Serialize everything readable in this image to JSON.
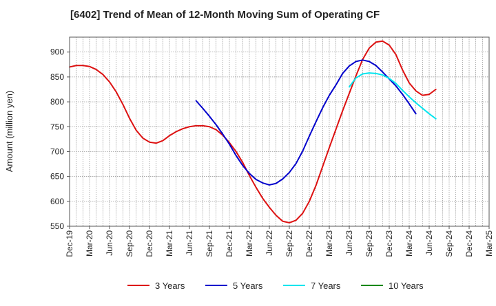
{
  "chart_data": {
    "type": "line",
    "title": "[6402]  Trend of Mean of 12-Month Moving Sum of Operating CF",
    "xlabel": "",
    "ylabel": "Amount (million yen)",
    "ylim": [
      550,
      930
    ],
    "y_ticks": [
      550,
      600,
      650,
      700,
      750,
      800,
      850,
      900
    ],
    "x_tick_labels": [
      "Dec-19",
      "Mar-20",
      "Jun-20",
      "Sep-20",
      "Dec-20",
      "Mar-21",
      "Jun-21",
      "Sep-21",
      "Dec-21",
      "Mar-22",
      "Jun-22",
      "Sep-22",
      "Dec-22",
      "Mar-23",
      "Jun-23",
      "Sep-23",
      "Dec-23",
      "Mar-24",
      "Jun-24",
      "Sep-24",
      "Dec-24",
      "Mar-25"
    ],
    "x_start": "Dec-19",
    "grid": true,
    "legend_position": "bottom",
    "series": [
      {
        "name": "3 Years",
        "color": "#dd1111",
        "start_index": 0,
        "values": [
          870,
          873,
          873,
          871,
          865,
          855,
          840,
          820,
          795,
          767,
          743,
          727,
          719,
          717,
          722,
          732,
          740,
          746,
          750,
          752,
          752,
          750,
          744,
          733,
          718,
          700,
          678,
          652,
          628,
          606,
          588,
          572,
          560,
          557,
          562,
          576,
          600,
          632,
          670,
          708,
          745,
          782,
          817,
          852,
          885,
          908,
          920,
          922,
          914,
          895,
          864,
          838,
          822,
          813,
          815,
          825
        ]
      },
      {
        "name": "5 Years",
        "color": "#0000cc",
        "start_index": 19,
        "values": [
          802,
          787,
          771,
          754,
          735,
          715,
          692,
          672,
          656,
          644,
          637,
          633,
          636,
          645,
          658,
          676,
          701,
          731,
          760,
          788,
          813,
          834,
          857,
          872,
          881,
          884,
          881,
          873,
          860,
          846,
          832,
          815,
          796,
          776
        ]
      },
      {
        "name": "7 Years",
        "color": "#00e5ee",
        "start_index": 42,
        "values": [
          830,
          848,
          856,
          858,
          857,
          854,
          847,
          837,
          823,
          810,
          798,
          787,
          776,
          766
        ]
      },
      {
        "name": "10 Years",
        "color": "#118811",
        "start_index": 0,
        "values": []
      }
    ]
  }
}
